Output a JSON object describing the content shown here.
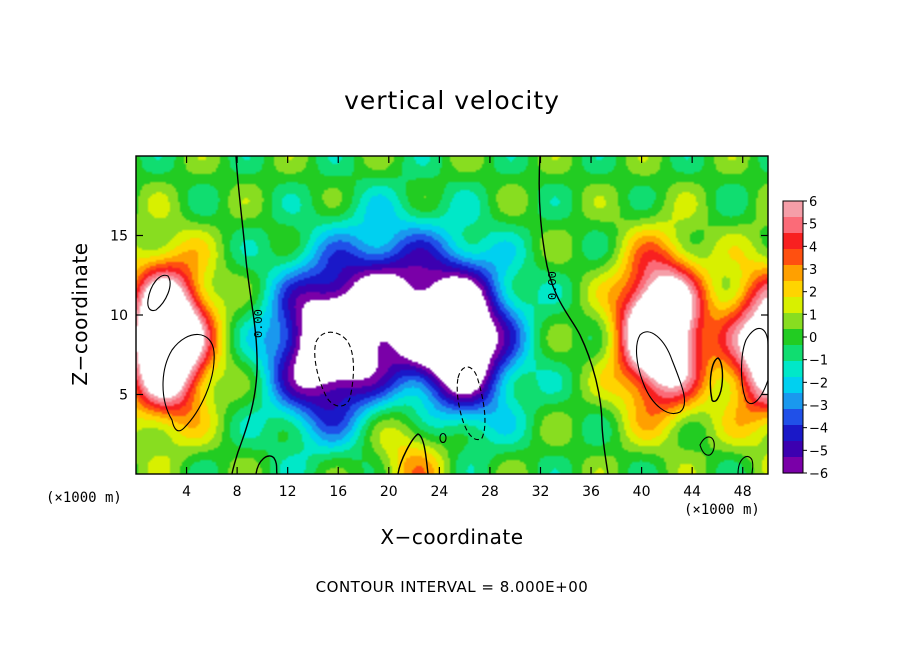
{
  "chart_data": {
    "type": "heatmap",
    "title": "vertical velocity",
    "xlabel": "X−coordinate",
    "ylabel": "Z−coordinate",
    "x_unit_label": "(×1000 m)",
    "z_unit_label": "(×1000 m)",
    "footer": "CONTOUR INTERVAL = 8.000E+00",
    "xlim": [
      0,
      50
    ],
    "ylim": [
      0,
      20
    ],
    "x_ticks": [
      4,
      8,
      12,
      16,
      20,
      24,
      28,
      32,
      36,
      40,
      44,
      48
    ],
    "y_ticks": [
      5,
      10,
      15
    ],
    "colorbar": {
      "ticks": [
        6,
        5,
        4,
        3,
        2,
        1,
        0,
        -1,
        -2,
        -3,
        -4,
        -5,
        -6
      ],
      "tick_labels": [
        "6",
        "5",
        "4",
        "3",
        "2",
        "1",
        "0",
        "−1",
        "−2",
        "−3",
        "−4",
        "−5",
        "−6"
      ],
      "over_color": "#ffffff",
      "colors": [
        "#f59ea8",
        "#fb6b78",
        "#f82020",
        "#ff5010",
        "#ffa000",
        "#ffd400",
        "#d8f000",
        "#88dd20",
        "#22cc22",
        "#10dd70",
        "#00e8c8",
        "#00d0f0",
        "#1a98ee",
        "#2050e8",
        "#1a18c8",
        "#3c00b0",
        "#7a00a8"
      ]
    },
    "contour_label": "0.00",
    "contour_interval": 8.0,
    "field_features": [
      {
        "type": "updraft",
        "x": 2.5,
        "z": 8.5,
        "peak": 12
      },
      {
        "type": "updraft",
        "x": 41.5,
        "z": 9,
        "peak": 12
      },
      {
        "type": "updraft",
        "x": 50,
        "z": 8,
        "peak": 9
      },
      {
        "type": "downdraft",
        "x": 15,
        "z": 8,
        "peak": -9
      },
      {
        "type": "downdraft",
        "x": 25.5,
        "z": 8.5,
        "peak": -10
      },
      {
        "type": "downdraft",
        "x": 20,
        "z": 11,
        "peak": -5
      },
      {
        "type": "updraft",
        "x": 22,
        "z": 1.2,
        "peak": 3
      }
    ]
  }
}
